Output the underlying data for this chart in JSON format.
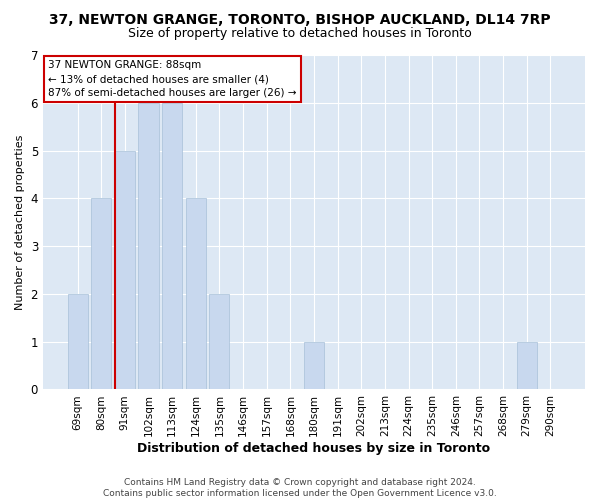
{
  "title1": "37, NEWTON GRANGE, TORONTO, BISHOP AUCKLAND, DL14 7RP",
  "title2": "Size of property relative to detached houses in Toronto",
  "xlabel": "Distribution of detached houses by size in Toronto",
  "ylabel": "Number of detached properties",
  "categories": [
    "69sqm",
    "80sqm",
    "91sqm",
    "102sqm",
    "113sqm",
    "124sqm",
    "135sqm",
    "146sqm",
    "157sqm",
    "168sqm",
    "180sqm",
    "191sqm",
    "202sqm",
    "213sqm",
    "224sqm",
    "235sqm",
    "246sqm",
    "257sqm",
    "268sqm",
    "279sqm",
    "290sqm"
  ],
  "values": [
    2,
    4,
    5,
    6,
    6,
    4,
    2,
    0,
    0,
    0,
    1,
    0,
    0,
    0,
    0,
    0,
    0,
    0,
    0,
    1,
    0
  ],
  "bar_color": "#c8d8ee",
  "bar_edgecolor": "#a8c0d8",
  "ylim": [
    0,
    7
  ],
  "yticks": [
    0,
    1,
    2,
    3,
    4,
    5,
    6,
    7
  ],
  "subject_line_color": "#cc0000",
  "subject_line_idx": 2,
  "annotation_line1": "37 NEWTON GRANGE: 88sqm",
  "annotation_line2": "← 13% of detached houses are smaller (4)",
  "annotation_line3": "87% of semi-detached houses are larger (26) →",
  "annotation_box_color": "#cc0000",
  "footer": "Contains HM Land Registry data © Crown copyright and database right 2024.\nContains public sector information licensed under the Open Government Licence v3.0.",
  "bg_color": "#ffffff",
  "plot_bg_color": "#dde8f4",
  "grid_color": "#ffffff",
  "title1_fontsize": 10,
  "title2_fontsize": 9,
  "xlabel_fontsize": 9,
  "ylabel_fontsize": 8,
  "tick_fontsize": 7.5,
  "footer_fontsize": 6.5
}
